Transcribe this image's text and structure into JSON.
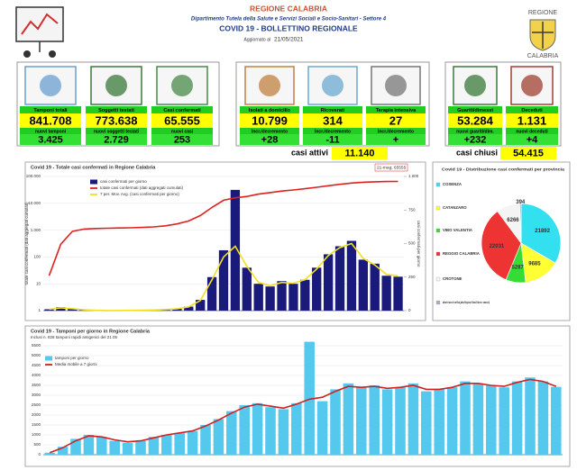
{
  "header": {
    "title": "REGIONE CALABRIA",
    "department": "Dipartimento Tutela della Salute e Servizi Sociali e Socio-Sanitari - Settore 4",
    "bulletin": "COVID 19 - BOLLETTINO REGIONALE",
    "updated_label": "Aggiornato al",
    "updated_date": "21/05/2021",
    "logo_top": "REGIONE",
    "logo_bottom": "CALABRIA"
  },
  "stats": [
    {
      "label": "Tamponi totali",
      "value": "841.708",
      "sublabel": "nuovi tamponi",
      "subvalue": "3.425"
    },
    {
      "label": "Soggetti testati",
      "value": "773.638",
      "sublabel": "nuovi soggetti testati",
      "subvalue": "2.729"
    },
    {
      "label": "Casi confermati",
      "value": "65.555",
      "sublabel": "nuovi casi",
      "subvalue": "253"
    },
    {
      "label": "Isolati a domicilio",
      "value": "10.799",
      "sublabel": "Incr./decremento",
      "subvalue": "+28"
    },
    {
      "label": "Ricoverati",
      "value": "314",
      "sublabel": "Incr./decremento",
      "subvalue": "-11"
    },
    {
      "label": "Terapia intensiva",
      "value": "27",
      "sublabel": "Incr./decremento",
      "subvalue": "+"
    },
    {
      "label": "Guariti/dimessi",
      "value": "53.284",
      "sublabel": "nuovi guariti/dim.",
      "subvalue": "+232"
    },
    {
      "label": "Deceduti",
      "value": "1.131",
      "sublabel": "nuovi deceduti",
      "subvalue": "+4"
    }
  ],
  "active": {
    "label": "casi attivi",
    "value": "11.140"
  },
  "closed": {
    "label": "casi chiusi",
    "value": "54.415"
  },
  "chart_data": [
    {
      "type": "combo",
      "title": "Covid 19 - Totale casi confermati in Regione Calabria",
      "annotation": "21-mag; 65555",
      "ylabel": "totale casi confermati (dati aggregati cumulati)",
      "y2label": "casi confermati per giorno",
      "log_scale": true,
      "ylim": [
        1,
        100000
      ],
      "yticks": [
        1,
        10,
        100,
        {
          "value": 1000,
          "label": "1.000"
        },
        {
          "value": 10000,
          "label": "10.000"
        },
        {
          "value": 100000,
          "label": "100.000"
        }
      ],
      "y2lim": [
        0,
        1000
      ],
      "y2ticks": [
        0,
        250,
        500,
        750,
        {
          "value": 1000,
          "label": "1.000"
        }
      ],
      "series": [
        {
          "name": "casi confermati per giorno",
          "color": "#1a1a7a",
          "kind": "bar",
          "axis": "y2",
          "values": [
            10,
            25,
            15,
            5,
            2,
            1,
            1,
            2,
            3,
            5,
            8,
            15,
            30,
            80,
            250,
            450,
            900,
            320,
            200,
            180,
            220,
            200,
            230,
            320,
            420,
            480,
            520,
            380,
            350,
            260,
            253
          ]
        },
        {
          "name": "totale casi confermati (dati aggregati cumulati)",
          "color": "#e02020",
          "kind": "line",
          "values": [
            20,
            300,
            900,
            1100,
            1150,
            1180,
            1200,
            1220,
            1260,
            1320,
            1450,
            1700,
            2200,
            3500,
            7000,
            13000,
            16000,
            18000,
            22000,
            25000,
            28500,
            31500,
            35000,
            39500,
            45000,
            51000,
            57000,
            61000,
            63500,
            64800,
            65555
          ]
        },
        {
          "name": "7 per. Mov. Avg. (casi confermati per giorno)",
          "color": "#f0e020",
          "kind": "line",
          "axis": "y2",
          "values": [
            10,
            20,
            15,
            6,
            2,
            1,
            1,
            2,
            3,
            5,
            8,
            14,
            28,
            75,
            230,
            400,
            480,
            330,
            210,
            185,
            210,
            205,
            230,
            310,
            410,
            470,
            500,
            390,
            340,
            270,
            260
          ]
        }
      ]
    },
    {
      "type": "pie",
      "title": "Covid 19 - Distribuzione casi confermati per provincia",
      "categories": [
        "COSENZA",
        "CATANZARO",
        "VIBO VALENTIA",
        "REGGIO CALABRIA",
        "CROTONE",
        "altra/in fase di verifica (altra Regione/ Stato Estero e sbarchi)"
      ],
      "values": [
        21892,
        9685,
        5287,
        22031,
        6266,
        394
      ],
      "colors": [
        "#33e0f0",
        "#ffff33",
        "#33dd33",
        "#ee3333",
        "#f4f4f4",
        "#a8a8c8"
      ]
    },
    {
      "type": "combo",
      "title": "Covid 19 - Tamponi per giorno in Regione Calabria",
      "subtitle": "Inclusi n. 828 tamponi rapidi antigenici del 21.05",
      "ylim": [
        0,
        5500
      ],
      "yticks": [
        0,
        500,
        1000,
        1500,
        2000,
        2500,
        3000,
        3500,
        4000,
        4500,
        5000,
        5500
      ],
      "series": [
        {
          "name": "tamponi per giorno",
          "color": "#55c8ee",
          "kind": "bar",
          "values": [
            100,
            400,
            800,
            1000,
            900,
            700,
            600,
            700,
            900,
            1000,
            1100,
            1200,
            1500,
            1800,
            2200,
            2500,
            2600,
            2400,
            2300,
            2600,
            5700,
            2700,
            3300,
            3600,
            3400,
            3500,
            3300,
            3400,
            3600,
            3200,
            3300,
            3400,
            3700,
            3600,
            3500,
            3400,
            3700,
            3900,
            3700,
            3425
          ]
        },
        {
          "name": "Media mobile a 7 giorni",
          "color": "#d02020",
          "kind": "line",
          "values": [
            100,
            350,
            700,
            950,
            900,
            750,
            650,
            700,
            850,
            1000,
            1100,
            1200,
            1450,
            1750,
            2100,
            2400,
            2550,
            2450,
            2350,
            2550,
            2800,
            2900,
            3200,
            3450,
            3400,
            3450,
            3350,
            3400,
            3500,
            3300,
            3300,
            3400,
            3600,
            3600,
            3500,
            3450,
            3650,
            3800,
            3700,
            3450
          ]
        }
      ]
    }
  ]
}
